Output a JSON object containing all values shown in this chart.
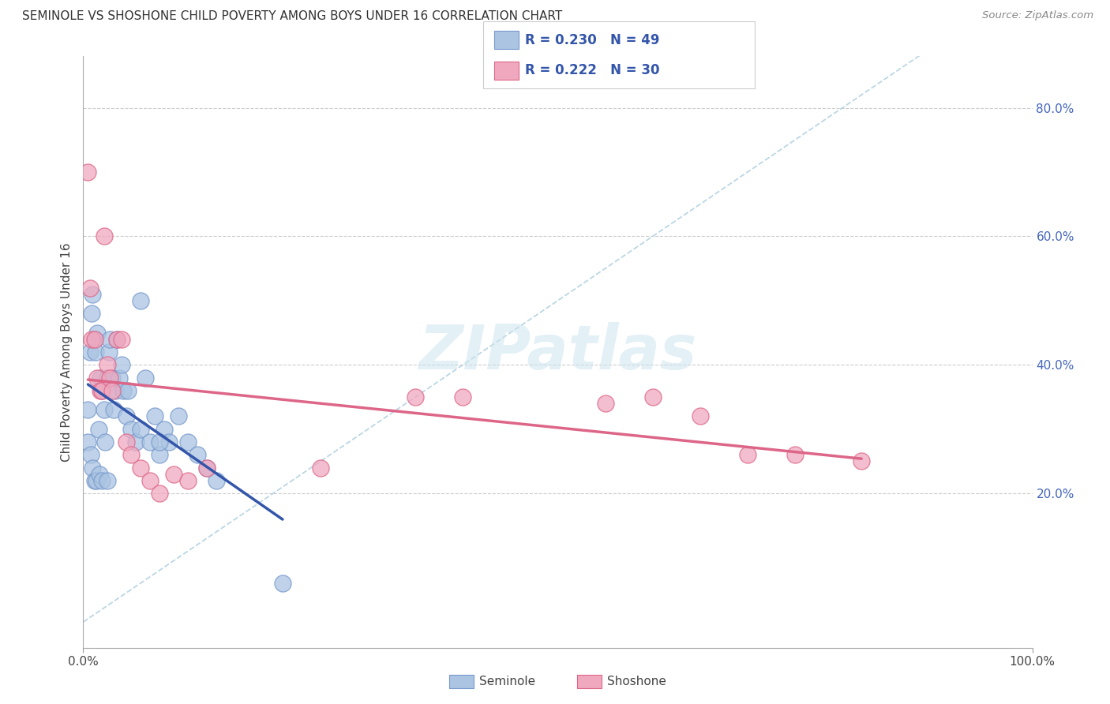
{
  "title": "SEMINOLE VS SHOSHONE CHILD POVERTY AMONG BOYS UNDER 16 CORRELATION CHART",
  "source": "Source: ZipAtlas.com",
  "ylabel": "Child Poverty Among Boys Under 16",
  "xlim": [
    0,
    1.0
  ],
  "ylim": [
    -0.04,
    0.88
  ],
  "seminole_color": "#aac4e2",
  "shoshone_color": "#f0a8bf",
  "seminole_edge_color": "#7799cc",
  "shoshone_edge_color": "#dd6688",
  "trend_blue": "#3355aa",
  "trend_pink": "#dd6688",
  "ref_line_color": "#aaccdd",
  "grid_color": "#cccccc",
  "R_seminole": 0.23,
  "N_seminole": 49,
  "R_shoshone": 0.222,
  "N_shoshone": 30,
  "watermark": "ZIPatlas",
  "background_color": "#ffffff",
  "seminole_x": [
    0.005,
    0.007,
    0.009,
    0.01,
    0.012,
    0.013,
    0.015,
    0.016,
    0.018,
    0.02,
    0.022,
    0.023,
    0.025,
    0.027,
    0.028,
    0.03,
    0.032,
    0.034,
    0.035,
    0.038,
    0.04,
    0.042,
    0.045,
    0.047,
    0.05,
    0.055,
    0.06,
    0.065,
    0.07,
    0.075,
    0.08,
    0.085,
    0.09,
    0.1,
    0.11,
    0.12,
    0.13,
    0.14,
    0.005,
    0.008,
    0.01,
    0.012,
    0.014,
    0.017,
    0.02,
    0.025,
    0.06,
    0.08,
    0.21
  ],
  "seminole_y": [
    0.33,
    0.42,
    0.48,
    0.51,
    0.44,
    0.42,
    0.45,
    0.3,
    0.38,
    0.36,
    0.33,
    0.28,
    0.38,
    0.42,
    0.44,
    0.38,
    0.33,
    0.36,
    0.44,
    0.38,
    0.4,
    0.36,
    0.32,
    0.36,
    0.3,
    0.28,
    0.3,
    0.38,
    0.28,
    0.32,
    0.26,
    0.3,
    0.28,
    0.32,
    0.28,
    0.26,
    0.24,
    0.22,
    0.28,
    0.26,
    0.24,
    0.22,
    0.22,
    0.23,
    0.22,
    0.22,
    0.5,
    0.28,
    0.06
  ],
  "shoshone_x": [
    0.005,
    0.007,
    0.009,
    0.012,
    0.015,
    0.018,
    0.02,
    0.022,
    0.025,
    0.028,
    0.03,
    0.035,
    0.04,
    0.045,
    0.05,
    0.06,
    0.07,
    0.08,
    0.095,
    0.11,
    0.13,
    0.25,
    0.35,
    0.4,
    0.55,
    0.6,
    0.65,
    0.7,
    0.75,
    0.82
  ],
  "shoshone_y": [
    0.7,
    0.52,
    0.44,
    0.44,
    0.38,
    0.36,
    0.36,
    0.6,
    0.4,
    0.38,
    0.36,
    0.44,
    0.44,
    0.28,
    0.26,
    0.24,
    0.22,
    0.2,
    0.23,
    0.22,
    0.24,
    0.24,
    0.35,
    0.35,
    0.34,
    0.35,
    0.32,
    0.26,
    0.26,
    0.25
  ]
}
